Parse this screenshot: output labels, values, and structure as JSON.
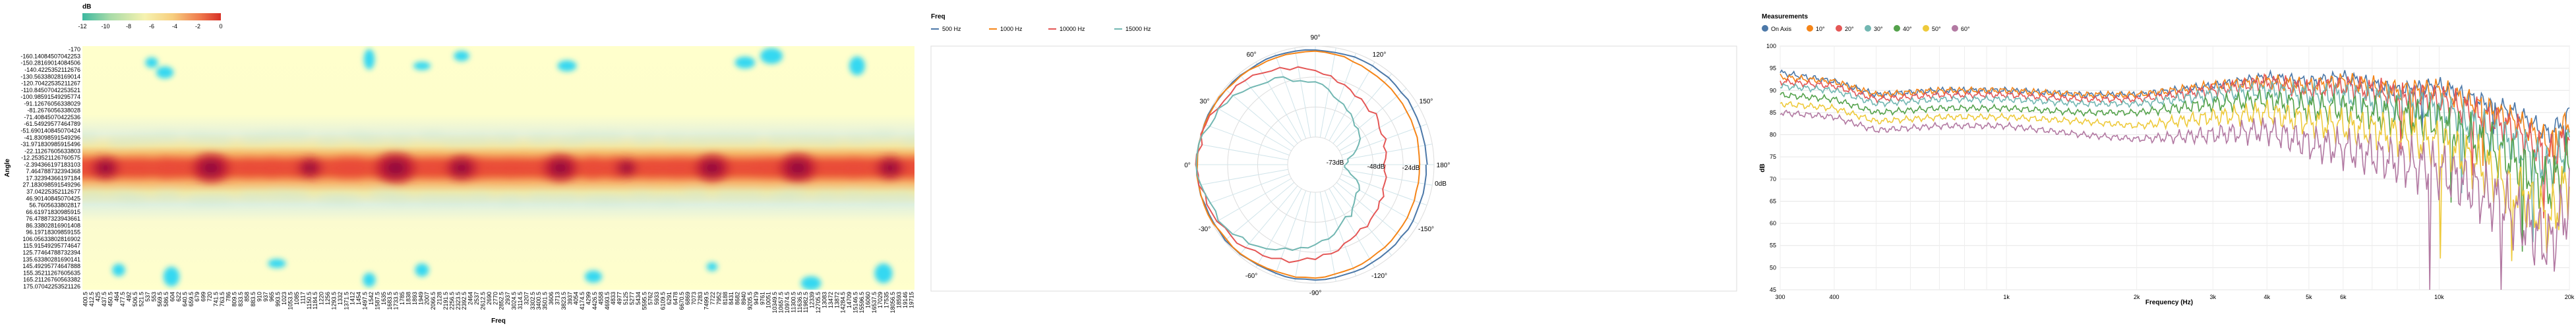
{
  "heatmap": {
    "legend_title": "dB",
    "legend_ticks": [
      "-12",
      "-10",
      "-8",
      "-6",
      "-4",
      "-2",
      "0"
    ],
    "xlabel": "Freq",
    "ylabel": "Angle",
    "angle_labels": [
      "-170",
      "-160.14084507042253",
      "-150.28169014084506",
      "-140.4225352112676",
      "-130.56338028169014",
      "-120.70422535211267",
      "-110.84507042253521",
      "-100.98591549295774",
      "-91.12676056338029",
      "-81.2676056338028",
      "-71.40845070422536",
      "-61.54929577464789",
      "-51.690140845070424",
      "-41.83098591549296",
      "-31.971830985915496",
      "-22.11267605633803",
      "-12.253521126760575",
      "-2.394366197183103",
      "7.464788732394368",
      "17.32394366197184",
      "27.183098591549296",
      "37.04225352112677",
      "46.90140845070425",
      "56.7605633802817",
      "66.61971830985915",
      "76.47887323943661",
      "86.33802816901408",
      "96.19718309859155",
      "106.05633802816902",
      "115.91549295774647",
      "125.77464788732394",
      "135.63380281690141",
      "145.49295774647888",
      "155.35211267605635",
      "165.21126760563382",
      "175.07042253521126"
    ],
    "freq_labels": [
      "400.5",
      "412.5",
      "425",
      "437.5",
      "450.5",
      "464",
      "477.5",
      "492",
      "506.5",
      "521.5",
      "537",
      "553",
      "569.5",
      "586.5",
      "604",
      "622",
      "640.5",
      "659.5",
      "679",
      "699",
      "720",
      "741.5",
      "763.5",
      "786",
      "809.5",
      "833.5",
      "858",
      "883.5",
      "910",
      "937",
      "965",
      "993.5",
      "1023",
      "1053.5",
      "1085",
      "1117",
      "1150.5",
      "1184.5",
      "1220",
      "1256",
      "1293.5",
      "1332",
      "1371.5",
      "1412",
      "1454",
      "1497.5",
      "1542",
      "1587.5",
      "1635",
      "1683.5",
      "1733.5",
      "1785",
      "1838",
      "1893",
      "1949",
      "2007",
      "2066.5",
      "2128",
      "2191.5",
      "2256.5",
      "2323.5",
      "2392.5",
      "2464",
      "2537",
      "2612.5",
      "2690",
      "2770",
      "2852.5",
      "2937",
      "3024.5",
      "3114.5",
      "3207",
      "3302.5",
      "3400.5",
      "3501.5",
      "3606",
      "3713",
      "3823.5",
      "3937",
      "4054",
      "4174.5",
      "4299",
      "4426.5",
      "4558",
      "4693.5",
      "4833",
      "4977",
      "5125",
      "5277",
      "5434",
      "5595.5",
      "5762",
      "5933",
      "6109.5",
      "6291",
      "6478",
      "6670.5",
      "6869",
      "7073",
      "7283",
      "7499.5",
      "7722",
      "7952",
      "8188",
      "8431",
      "8682",
      "8940",
      "9205.5",
      "9479",
      "9761",
      "10051",
      "10349.5",
      "10657.5",
      "10974.5",
      "11300.5",
      "11636.5",
      "11982.5",
      "12339",
      "12705.5",
      "13083",
      "13472",
      "13872",
      "14284.5",
      "14709",
      "15146.5",
      "15596.5",
      "16060",
      "16537.5",
      "17029",
      "17535",
      "18056.5",
      "18593",
      "19146",
      "19715"
    ]
  },
  "polar": {
    "legend_title": "Freq",
    "series": [
      {
        "name": "500 Hz",
        "color": "#4c78a8"
      },
      {
        "name": "1000 Hz",
        "color": "#f58518"
      },
      {
        "name": "10000 Hz",
        "color": "#e45756"
      },
      {
        "name": "15000 Hz",
        "color": "#72b7b2"
      }
    ],
    "angle_labels": [
      "90°",
      "60°",
      "30°",
      "0°",
      "-30°",
      "-60°",
      "-90°",
      "-120°",
      "-150°",
      "180°",
      "150°",
      "120°"
    ],
    "radial_labels": [
      "-73dB",
      "-48dB",
      "-24dB",
      "0dB"
    ]
  },
  "chart_data": [
    {
      "type": "heatmap",
      "title": "",
      "xlabel": "Freq",
      "ylabel": "Angle",
      "zlabel": "dB",
      "zlim": [
        -12,
        0
      ],
      "y_range": [
        -170,
        175.07
      ],
      "x_range": [
        400.5,
        19715
      ],
      "description_of_values": "hot band around 0° angle across all frequencies; peaks near 700, 1400, 2600, 5000, 9000, 15000 Hz"
    },
    {
      "type": "polar",
      "title": "",
      "series": [
        {
          "name": "500 Hz",
          "angles_deg": [
            0,
            30,
            60,
            90,
            120,
            150,
            180,
            -150,
            -120,
            -90,
            -60,
            -30
          ],
          "values_db": [
            0,
            -1,
            -2,
            -3,
            -4,
            -5,
            -6,
            -5,
            -4,
            -3,
            -2,
            -1
          ]
        },
        {
          "name": "1000 Hz",
          "angles_deg": [
            0,
            30,
            60,
            90,
            120,
            150,
            180,
            -150,
            -120,
            -90,
            -60,
            -30
          ],
          "values_db": [
            0,
            -1,
            -3,
            -4,
            -8,
            -10,
            -12,
            -10,
            -8,
            -4,
            -3,
            -1
          ]
        },
        {
          "name": "10000 Hz",
          "angles_deg": [
            0,
            30,
            60,
            90,
            120,
            150,
            180,
            -150,
            -120,
            -90,
            -60,
            -30
          ],
          "values_db": [
            0,
            -4,
            -10,
            -20,
            -30,
            -35,
            -40,
            -35,
            -30,
            -20,
            -10,
            -4
          ]
        },
        {
          "name": "15000 Hz",
          "angles_deg": [
            0,
            30,
            60,
            90,
            120,
            150,
            180,
            -150,
            -120,
            -90,
            -60,
            -30
          ],
          "values_db": [
            0,
            -6,
            -18,
            -30,
            -45,
            -55,
            -73,
            -55,
            -45,
            -30,
            -18,
            -6
          ]
        }
      ]
    },
    {
      "type": "line",
      "title": "",
      "xlabel": "Frequency (Hz)",
      "ylabel": "dB",
      "xscale": "log",
      "xlim": [
        300,
        20000
      ],
      "ylim": [
        45,
        100
      ],
      "legend_title": "Measurements",
      "x_ticks": [
        "300",
        "400",
        "1k",
        "2k",
        "3k",
        "4k",
        "5k",
        "6k",
        "10k",
        "20k"
      ],
      "y_ticks": [
        "45",
        "50",
        "55",
        "60",
        "65",
        "70",
        "75",
        "80",
        "85",
        "90",
        "95",
        "100"
      ],
      "x": [
        300,
        400,
        500,
        700,
        1000,
        1500,
        2000,
        3000,
        4000,
        5000,
        6000,
        8000,
        10000,
        12000,
        15000,
        18000,
        20000
      ],
      "series": [
        {
          "name": "On Axis",
          "color": "#4c78a8",
          "values": [
            94,
            92,
            89,
            90,
            90,
            89,
            89,
            91,
            93,
            92,
            93,
            90,
            91,
            88,
            85,
            80,
            85
          ]
        },
        {
          "name": "10°",
          "color": "#f58518",
          "values": [
            93,
            92,
            89,
            90,
            90,
            89,
            89,
            91,
            92,
            91,
            92,
            90,
            90,
            87,
            83,
            78,
            83
          ]
        },
        {
          "name": "20°",
          "color": "#e45756",
          "values": [
            92,
            91,
            88,
            89,
            89,
            88,
            88,
            90,
            92,
            90,
            91,
            89,
            88,
            85,
            81,
            75,
            80
          ]
        },
        {
          "name": "30°",
          "color": "#72b7b2",
          "values": [
            91,
            90,
            87,
            88,
            88,
            87,
            87,
            89,
            90,
            89,
            89,
            87,
            86,
            82,
            78,
            72,
            78
          ]
        },
        {
          "name": "40°",
          "color": "#54a24b",
          "values": [
            89,
            88,
            85,
            86,
            86,
            85,
            85,
            87,
            88,
            86,
            86,
            84,
            83,
            79,
            74,
            68,
            74
          ]
        },
        {
          "name": "50°",
          "color": "#eeca3b",
          "values": [
            87,
            86,
            83,
            84,
            84,
            83,
            82,
            84,
            85,
            83,
            82,
            80,
            78,
            74,
            68,
            60,
            70
          ]
        },
        {
          "name": "60°",
          "color": "#b279a2",
          "values": [
            85,
            84,
            81,
            82,
            82,
            80,
            79,
            80,
            81,
            78,
            77,
            74,
            72,
            68,
            62,
            55,
            65
          ]
        }
      ]
    }
  ],
  "linechart": {
    "legend_title": "Measurements",
    "xlabel": "Frequency (Hz)",
    "ylabel": "dB",
    "x_ticks": [
      {
        "label": "300",
        "f": 300
      },
      {
        "label": "400",
        "f": 400
      },
      {
        "label": "1k",
        "f": 1000
      },
      {
        "label": "2k",
        "f": 2000
      },
      {
        "label": "3k",
        "f": 3000
      },
      {
        "label": "4k",
        "f": 4000
      },
      {
        "label": "5k",
        "f": 5000
      },
      {
        "label": "6k",
        "f": 6000
      },
      {
        "label": "10k",
        "f": 10000
      },
      {
        "label": "20k",
        "f": 20000
      }
    ],
    "y_ticks": [
      "45",
      "50",
      "55",
      "60",
      "65",
      "70",
      "75",
      "80",
      "85",
      "90",
      "95",
      "100"
    ]
  }
}
